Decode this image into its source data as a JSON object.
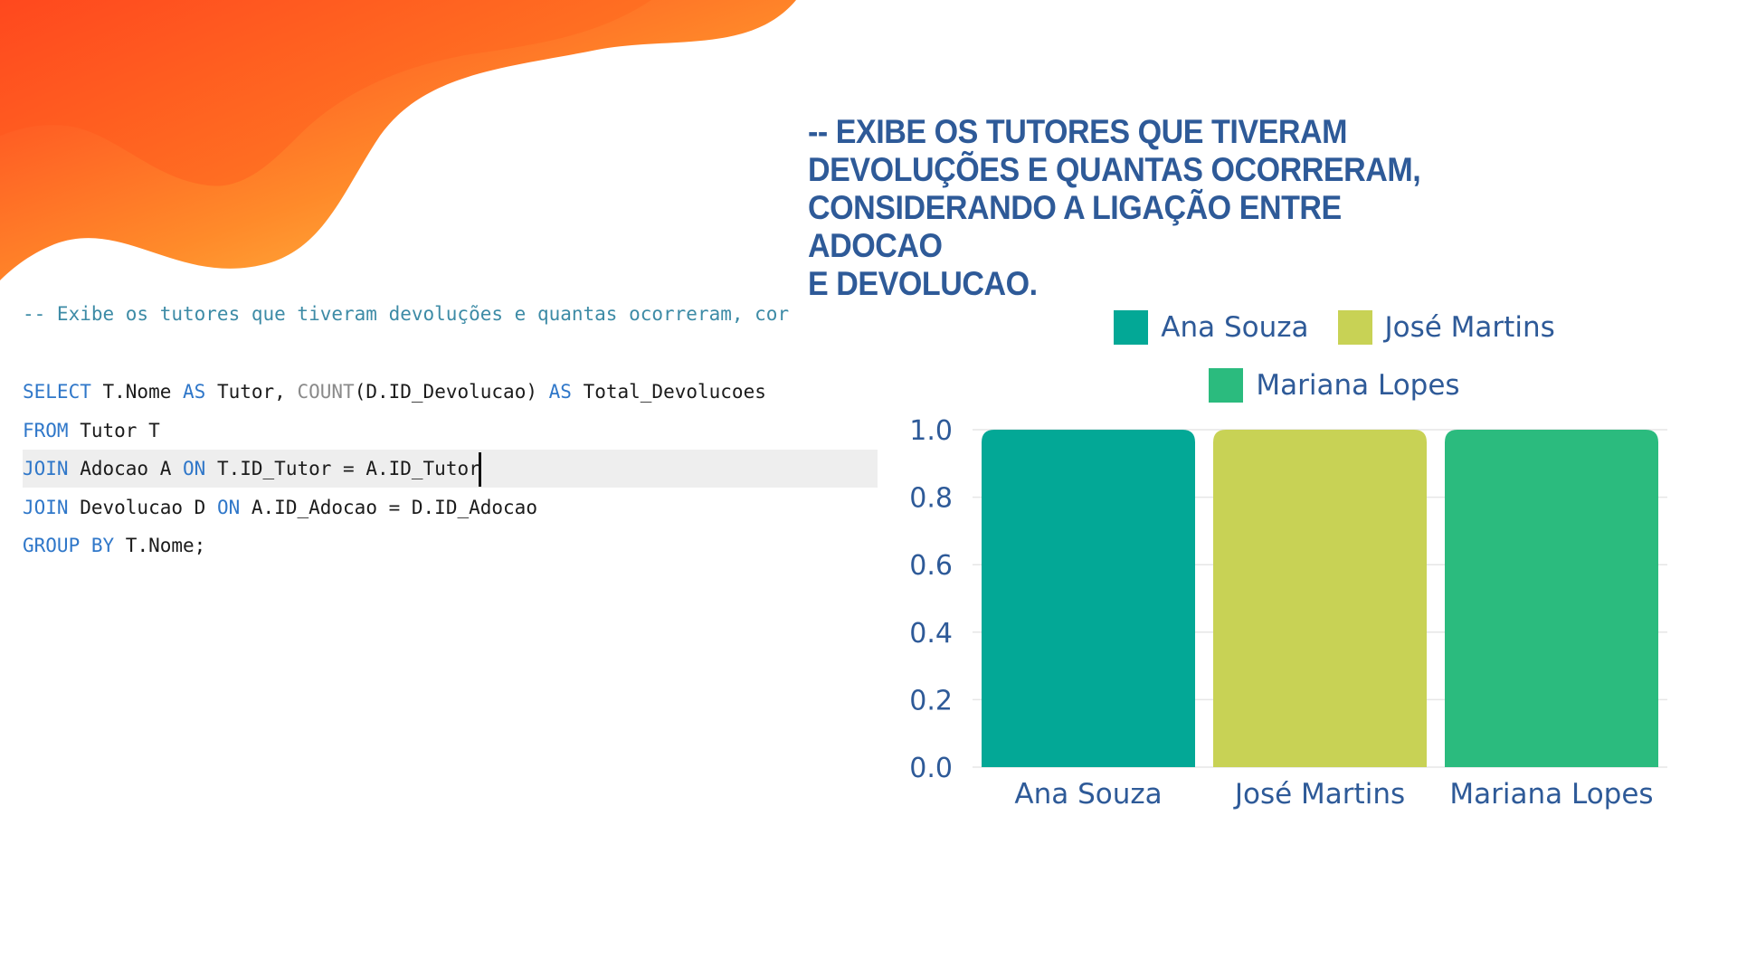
{
  "heading": {
    "lines": [
      "-- EXIBE OS TUTORES QUE TIVERAM",
      "DEVOLUÇÕES E QUANTAS OCORRERAM,",
      "CONSIDERANDO A LIGAÇÃO ENTRE ADOCAO",
      "E DEVOLUCAO."
    ]
  },
  "code": {
    "comment": "-- Exibe os tutores que tiveram devoluções e quantas ocorreram, cor",
    "line1": {
      "kw1": "SELECT",
      "t1": " T.Nome ",
      "kw2": "AS",
      "t2": " Tutor, ",
      "fn": "COUNT",
      "t3": "(D.ID_Devolucao) ",
      "kw3": "AS",
      "t4": " Total_Devolucoes"
    },
    "line2": {
      "kw1": "FROM",
      "t1": " Tutor T"
    },
    "line3": {
      "kw1": "JOIN",
      "t1": " Adocao A ",
      "kw2": "ON",
      "t2": " T.ID_Tutor = A.ID_Tutor"
    },
    "line4": {
      "kw1": "JOIN",
      "t1": " Devolucao D ",
      "kw2": "ON",
      "t2": " A.ID_Adocao = D.ID_Adocao"
    },
    "line5": {
      "kw1": "GROUP BY",
      "t1": " T.Nome;"
    }
  },
  "colors": {
    "text": "#2e5a98",
    "keyword": "#2f77c9",
    "comment": "#3d8ba6",
    "blob_dark": "#ff3d1f",
    "blob_light": "#ffc94a"
  },
  "chart_data": {
    "type": "bar",
    "categories": [
      "Ana Souza",
      "José Martins",
      "Mariana Lopes"
    ],
    "values": [
      1.0,
      1.0,
      1.0
    ],
    "colors": [
      "#03a896",
      "#c8d255",
      "#2bbb7e"
    ],
    "legend": [
      "Ana Souza",
      "José Martins",
      "Mariana Lopes"
    ],
    "legend_position": "top",
    "yticks": [
      "0.0",
      "0.2",
      "0.4",
      "0.6",
      "0.8",
      "1.0"
    ],
    "ylim": [
      0,
      1.0
    ],
    "grid": true
  }
}
